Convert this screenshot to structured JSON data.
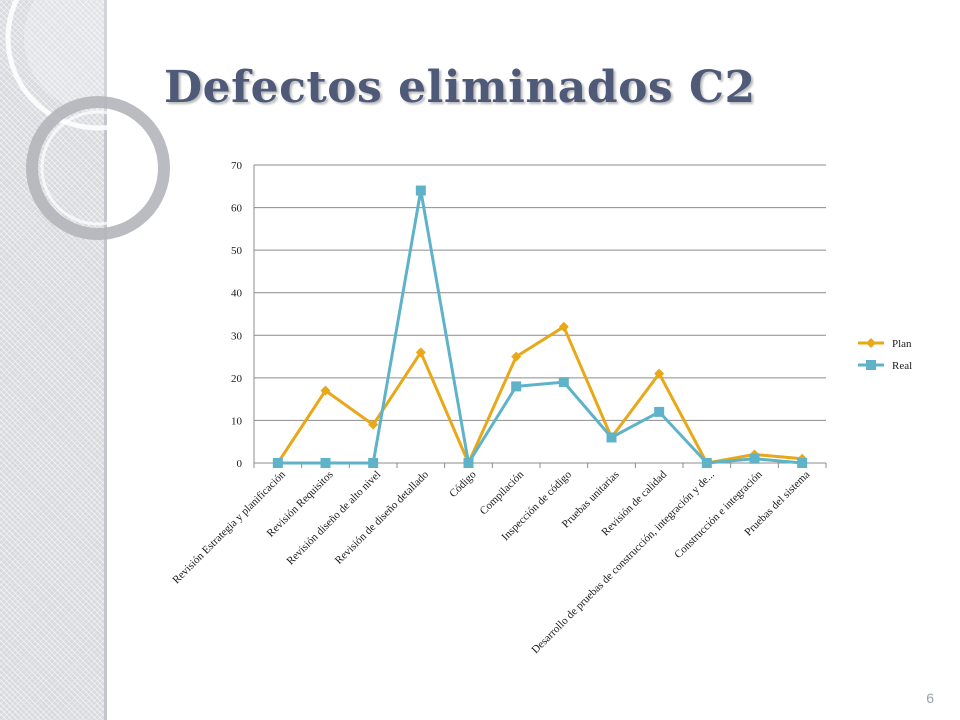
{
  "slide": {
    "title": "Defectos eliminados C2",
    "page_number": "6"
  },
  "chart_data": {
    "type": "line",
    "title": "",
    "xlabel": "",
    "ylabel": "",
    "ylim": [
      0,
      70
    ],
    "yticks": [
      0,
      10,
      20,
      30,
      40,
      50,
      60,
      70
    ],
    "grid": true,
    "legend": "right",
    "categories": [
      "Revisión Estrategia y planificación",
      "Revisión Requisitos",
      "Revisión diseño de alto nivel",
      "Revisión de diseño detallado",
      "Código",
      "Compilación",
      "Inspección de código",
      "Pruebas unitarias",
      "Revisión de calidad",
      "Desarrollo de pruebas de construcción, integración y de...",
      "Construcción e integración",
      "Pruebas del sistema"
    ],
    "series": [
      {
        "name": "Plan",
        "color": "#e8a817",
        "marker": "diamond",
        "values": [
          0,
          17,
          9,
          26,
          0,
          25,
          32,
          6,
          21,
          0,
          2,
          1
        ]
      },
      {
        "name": "Real",
        "color": "#5fb3c9",
        "marker": "square",
        "values": [
          0,
          0,
          0,
          64,
          0,
          18,
          19,
          6,
          12,
          0,
          1,
          0
        ]
      }
    ]
  }
}
